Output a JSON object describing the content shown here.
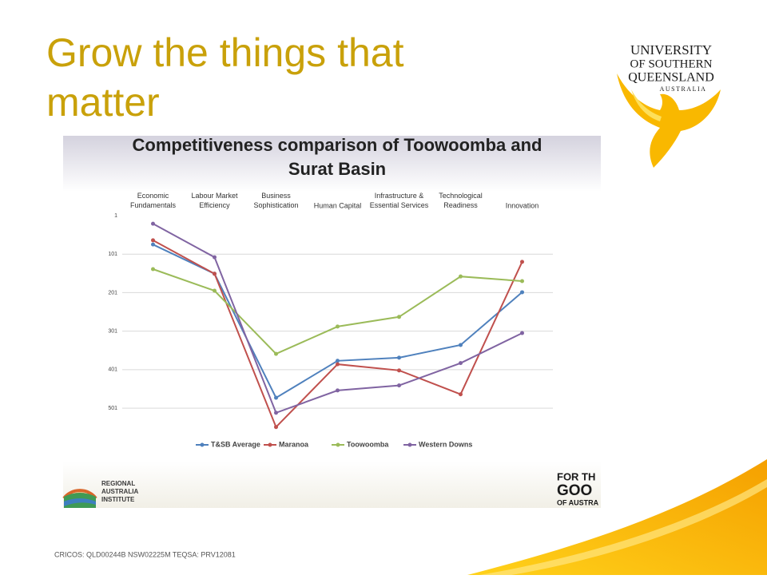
{
  "slide": {
    "title_lines": [
      "Grow the things that",
      "matter"
    ],
    "logo_lines": [
      "UNIVERSITY",
      "OF SOUTHERN",
      "QUEENSLAND",
      "AUSTRALIA"
    ],
    "footer": "CRICOS: QLD00244B  NSW02225M   TEQSA: PRV12081",
    "rai_logo_lines": [
      "REGIONAL",
      "AUSTRALIA",
      "INSTITUTE"
    ],
    "slogan_lines": [
      "FOR TH",
      "GOO",
      "OF AUSTRA"
    ]
  },
  "chart_data": {
    "type": "line",
    "title_lines": [
      "Competitiveness comparison of Toowoomba and",
      "Surat Basin"
    ],
    "categories": [
      "Economic\nFundamentals",
      "Labour Market\nEfficiency",
      "Business\nSophistication",
      "Human Capital",
      "Infrastructure &\nEssential Services",
      "Technological\nReadiness",
      "Innovation"
    ],
    "series": [
      {
        "name": "T&SB Average",
        "color": "#4f81bd",
        "values": [
          76,
          152,
          474,
          378,
          370,
          337,
          200
        ]
      },
      {
        "name": "Maranoa",
        "color": "#c0504d",
        "values": [
          65,
          152,
          550,
          387,
          403,
          465,
          121
        ]
      },
      {
        "name": "Toowoomba",
        "color": "#9bbb59",
        "values": [
          140,
          196,
          360,
          289,
          264,
          159,
          171
        ]
      },
      {
        "name": "Western Downs",
        "color": "#8064a2",
        "values": [
          22,
          109,
          513,
          455,
          442,
          384,
          306
        ]
      }
    ],
    "ylim": [
      1,
      561
    ],
    "y_inverted": true,
    "yticks": [
      1,
      101,
      201,
      301,
      401,
      501
    ],
    "grid": true,
    "legend": "bottom"
  }
}
